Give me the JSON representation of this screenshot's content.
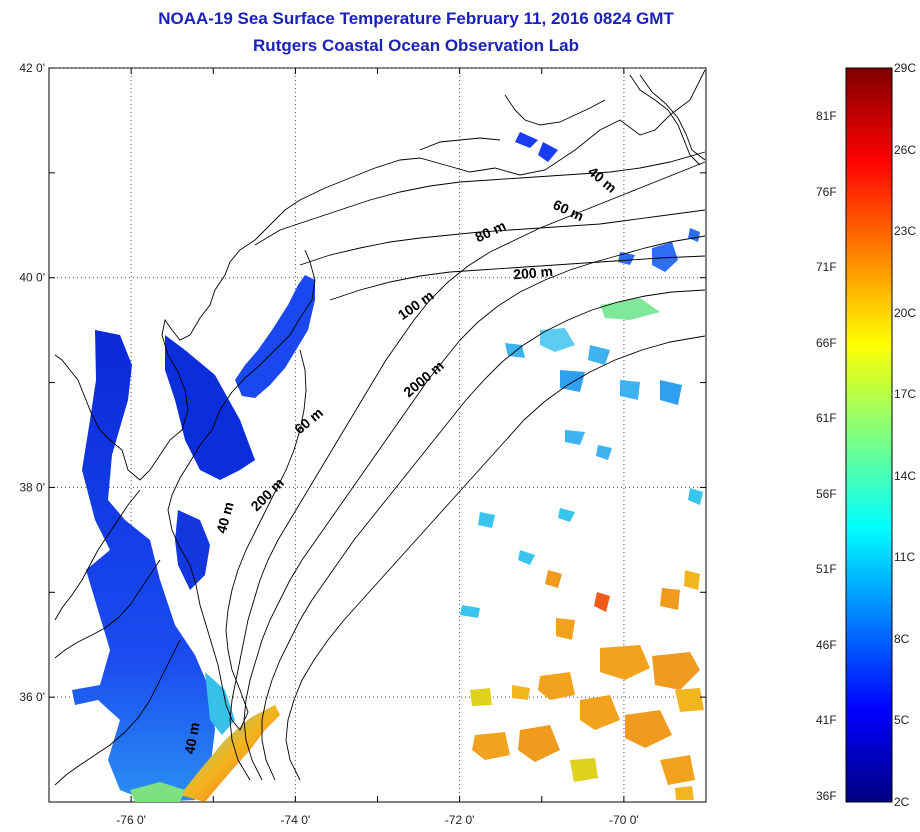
{
  "title": "NOAA-19 Sea Surface Temperature February 11, 2016 0824 GMT",
  "subtitle": "Rutgers Coastal Ocean Observation Lab",
  "lat_ticks": [
    {
      "lat": 42,
      "label": "42 0'"
    },
    {
      "lat": 40,
      "label": "40 0'"
    },
    {
      "lat": 38,
      "label": "38 0'"
    },
    {
      "lat": 36,
      "label": "36 0'"
    }
  ],
  "lon_ticks": [
    {
      "lon": -76,
      "label": "-76 0'"
    },
    {
      "lon": -74,
      "label": "-74 0'"
    },
    {
      "lon": -72,
      "label": "-72 0'"
    },
    {
      "lon": -70,
      "label": "-70 0'"
    }
  ],
  "extent": {
    "lon_min": -77,
    "lon_max": -69,
    "lat_min": 35,
    "lat_max": 42
  },
  "contour_labels": [
    {
      "text": "40 m",
      "lon": -70.3,
      "lat": 40.9,
      "rotate": 40
    },
    {
      "text": "60 m",
      "lon": -70.7,
      "lat": 40.6,
      "rotate": 25
    },
    {
      "text": "80 m",
      "lon": -71.6,
      "lat": 40.4,
      "rotate": -25
    },
    {
      "text": "200 m",
      "lon": -71.1,
      "lat": 40.0,
      "rotate": -5
    },
    {
      "text": "100 m",
      "lon": -72.5,
      "lat": 39.7,
      "rotate": -35
    },
    {
      "text": "2000 m",
      "lon": -72.4,
      "lat": 39.0,
      "rotate": -40
    },
    {
      "text": "60 m",
      "lon": -73.8,
      "lat": 38.6,
      "rotate": -40
    },
    {
      "text": "200 m",
      "lon": -74.3,
      "lat": 37.9,
      "rotate": -45
    },
    {
      "text": "40 m",
      "lon": -74.8,
      "lat": 37.7,
      "rotate": -75
    },
    {
      "text": "40 m",
      "lon": -75.2,
      "lat": 35.6,
      "rotate": -80
    }
  ],
  "colorbar": {
    "c_min": 2,
    "c_max": 29,
    "celsius_labels": [
      "29C",
      "26C",
      "23C",
      "20C",
      "17C",
      "14C",
      "11C",
      "8C",
      "5C",
      "2C"
    ],
    "fahrenheit_labels": [
      "81F",
      "76F",
      "71F",
      "66F",
      "61F",
      "56F",
      "51F",
      "46F",
      "41F",
      "36F"
    ]
  }
}
